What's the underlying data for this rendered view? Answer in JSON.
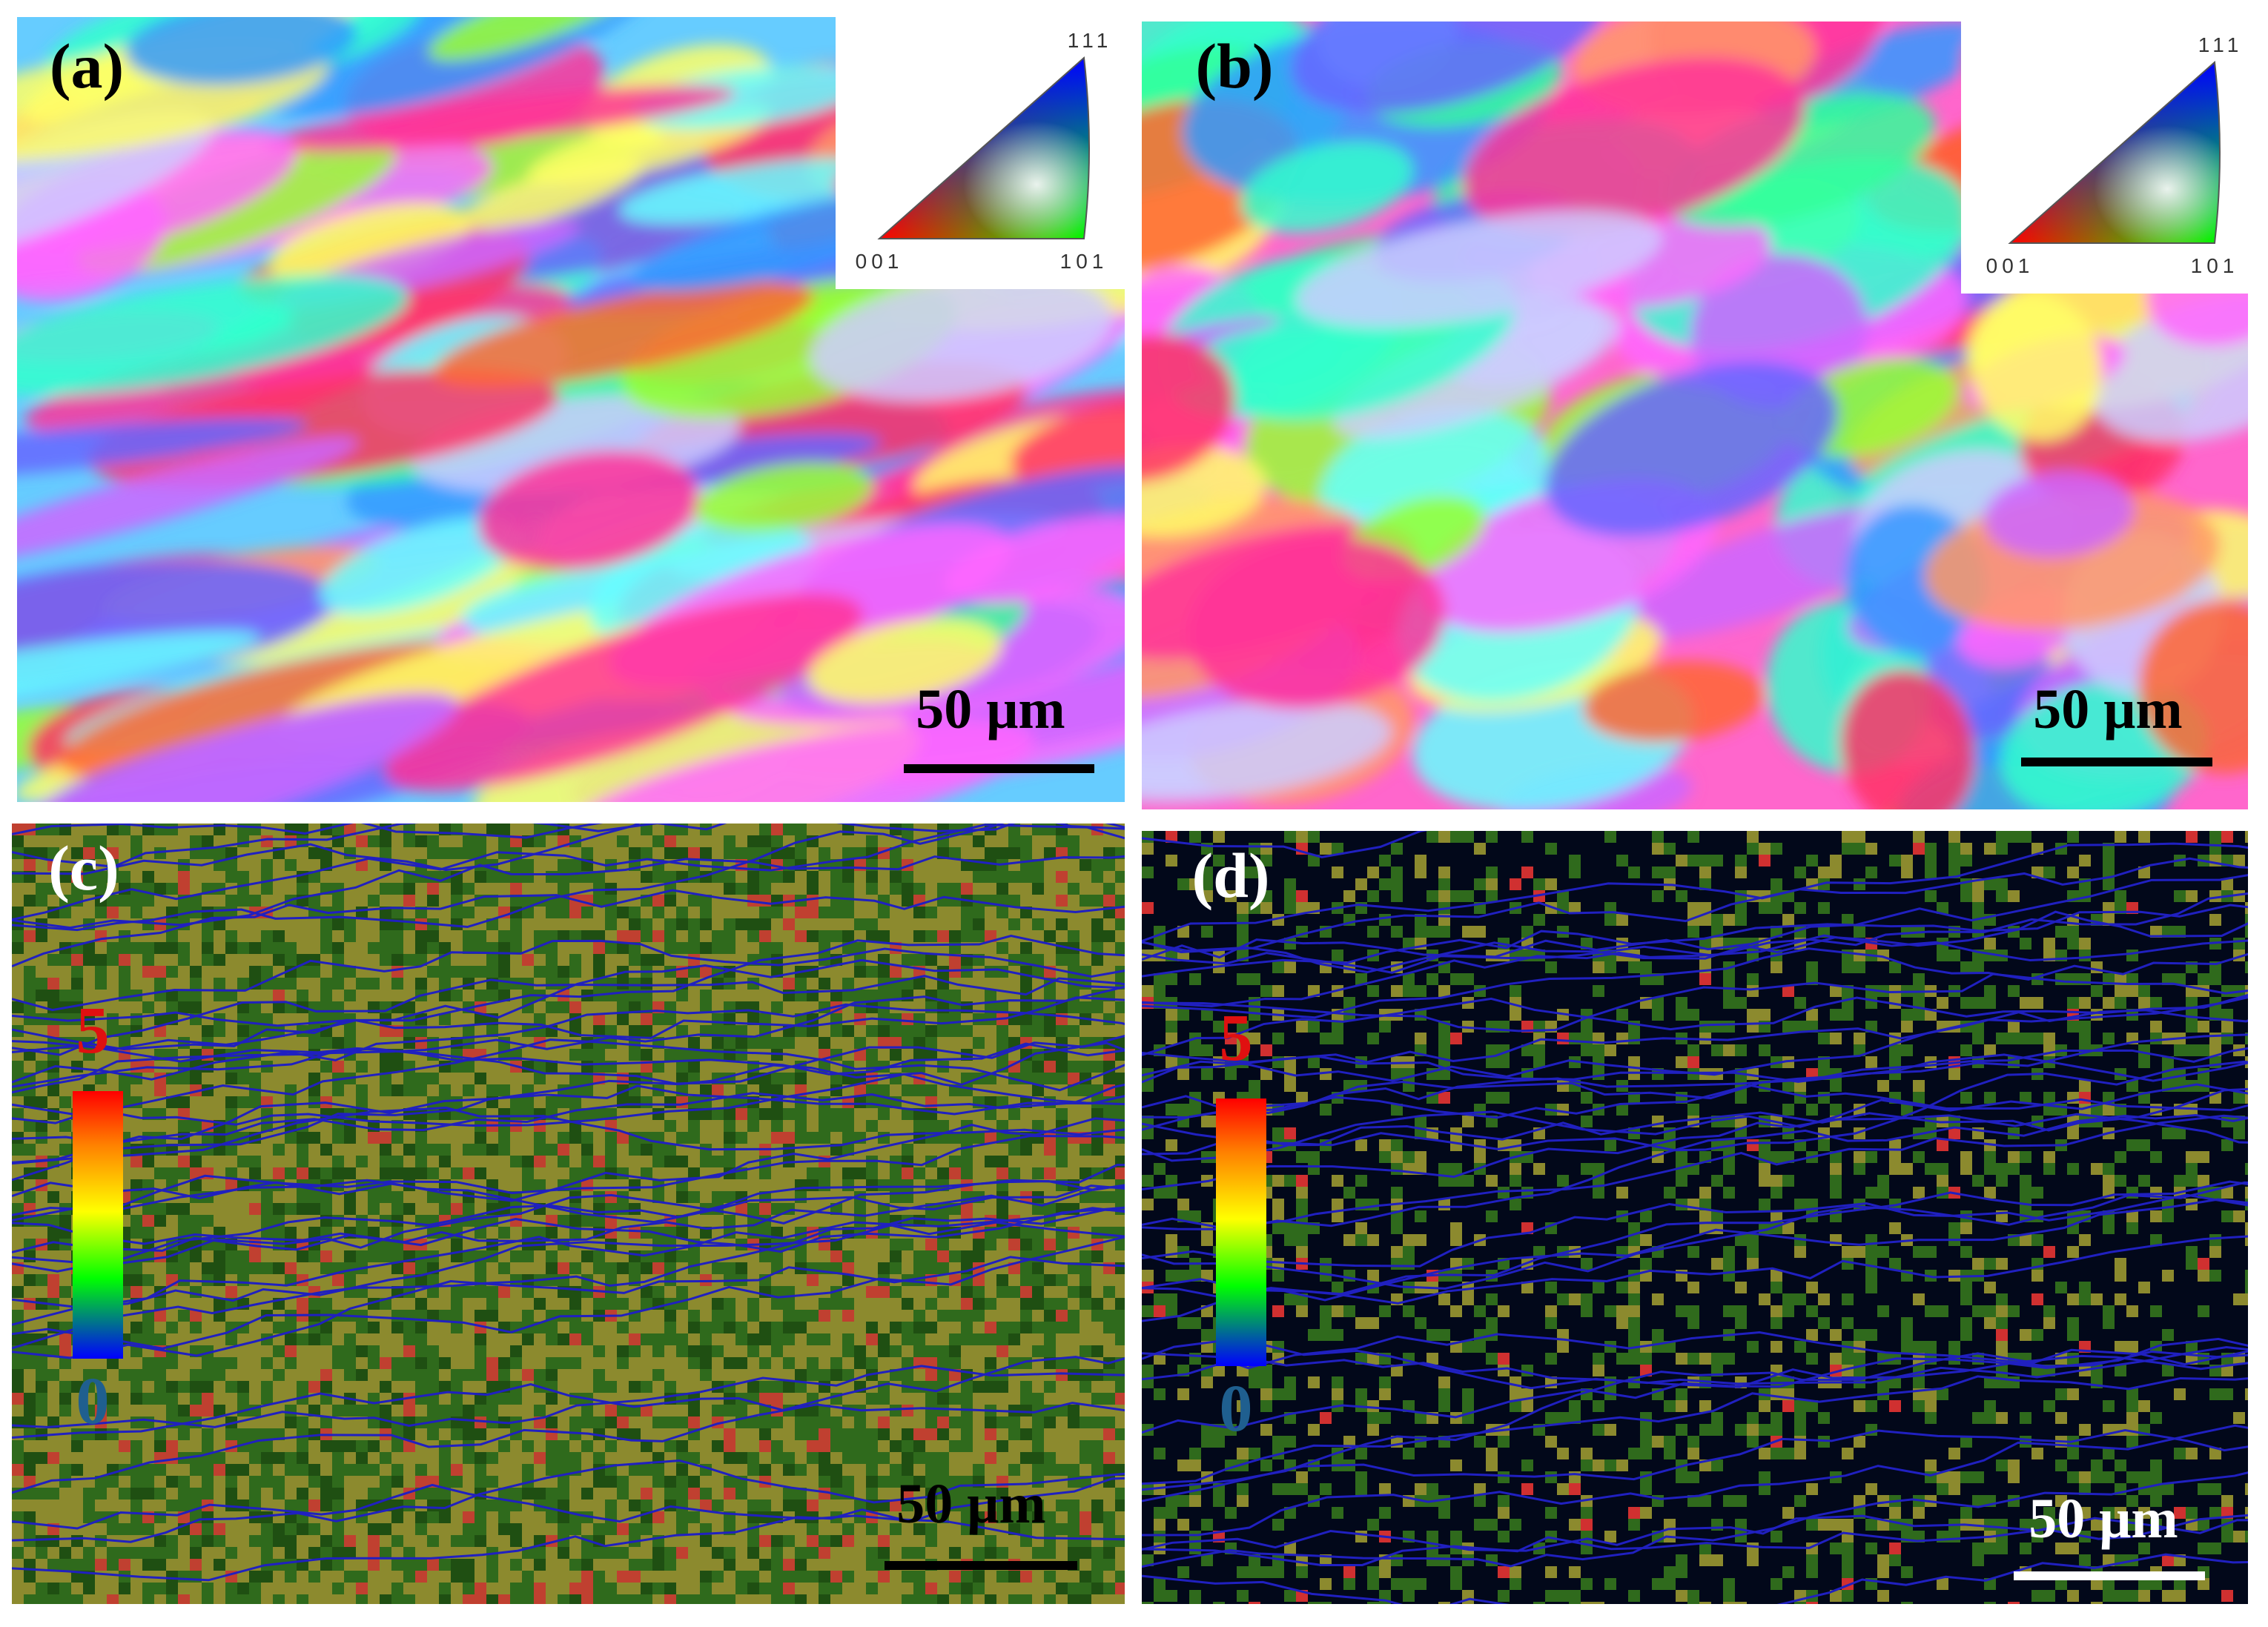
{
  "panels": [
    {
      "label": "(a)",
      "scale_bar": "50 μm",
      "legend": {
        "top": "111",
        "left": "001",
        "right": "101"
      }
    },
    {
      "label": "(b)",
      "scale_bar": "50 μm",
      "legend": {
        "top": "111",
        "left": "001",
        "right": "101"
      }
    },
    {
      "label": "(c)",
      "scale_bar": "50 μm",
      "legend": {
        "max": "5",
        "min": "0"
      }
    },
    {
      "label": "(d)",
      "scale_bar": "50 μm",
      "legend": {
        "max": "5",
        "min": "0"
      }
    }
  ]
}
